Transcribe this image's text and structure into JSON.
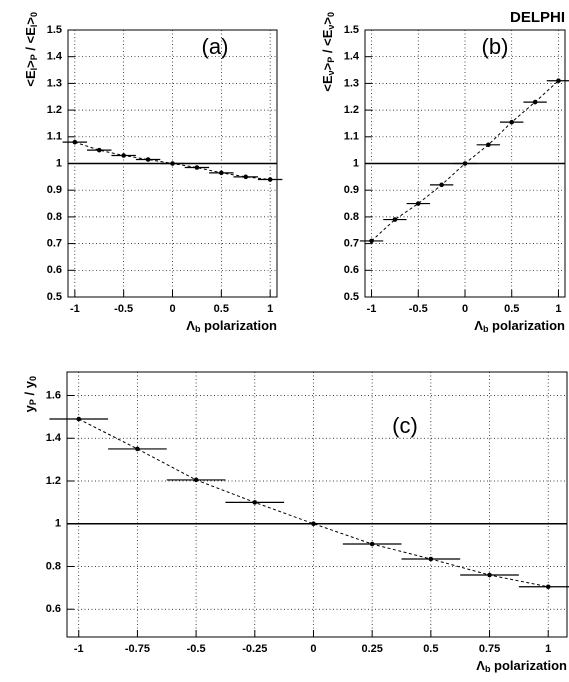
{
  "header": "DELPHI",
  "chart_data": [
    {
      "type": "line",
      "annotation": "(a)",
      "x_label": [
        "Λ",
        "b",
        " polarization"
      ],
      "y_label": [
        "<E",
        "l",
        ">",
        "P",
        " / <E",
        "l",
        ">",
        "0"
      ],
      "x": [
        -1,
        -0.75,
        -0.5,
        -0.25,
        0,
        0.25,
        0.5,
        0.75,
        1
      ],
      "xerr": 0.125,
      "values": [
        1.08,
        1.05,
        1.03,
        1.015,
        1.0,
        0.985,
        0.965,
        0.95,
        0.94
      ],
      "hline": 1,
      "xlim": [
        -1.07,
        1.07
      ],
      "ylim": [
        0.5,
        1.5
      ],
      "xticks": [
        -1,
        -0.5,
        0,
        0.5,
        1
      ],
      "yticks": [
        0.5,
        0.6,
        0.7,
        0.8,
        0.9,
        1,
        1.1,
        1.2,
        1.3,
        1.4,
        1.5
      ],
      "grid": true,
      "color": "#000000"
    },
    {
      "type": "line",
      "annotation": "(b)",
      "x_label": [
        "Λ",
        "b",
        " polarization"
      ],
      "y_label": [
        "<E",
        "ν",
        ">",
        "P",
        " / <E",
        "ν",
        ">",
        "0"
      ],
      "x": [
        -1,
        -0.75,
        -0.5,
        -0.25,
        0,
        0.25,
        0.5,
        0.75,
        1
      ],
      "xerr": 0.125,
      "values": [
        0.71,
        0.79,
        0.85,
        0.92,
        1.0,
        1.07,
        1.155,
        1.23,
        1.31
      ],
      "hline": 1,
      "xlim": [
        -1.07,
        1.07
      ],
      "ylim": [
        0.5,
        1.5
      ],
      "xticks": [
        -1,
        -0.5,
        0,
        0.5,
        1
      ],
      "yticks": [
        0.5,
        0.6,
        0.7,
        0.8,
        0.9,
        1,
        1.1,
        1.2,
        1.3,
        1.4,
        1.5
      ],
      "grid": true,
      "color": "#000000"
    },
    {
      "type": "line",
      "annotation": "(c)",
      "x_label": [
        "Λ",
        "b",
        " polarization"
      ],
      "y_label": [
        "y",
        "P",
        " / y",
        "0"
      ],
      "x": [
        -1,
        -0.75,
        -0.5,
        -0.25,
        0,
        0.25,
        0.5,
        0.75,
        1
      ],
      "xerr": 0.125,
      "values": [
        1.49,
        1.35,
        1.205,
        1.1,
        1.0,
        0.905,
        0.835,
        0.76,
        0.705
      ],
      "hline": 1,
      "xlim": [
        -1.05,
        1.08
      ],
      "ylim": [
        0.47,
        1.71
      ],
      "xticks": [
        -1,
        -0.75,
        -0.5,
        -0.25,
        0,
        0.25,
        0.5,
        0.75,
        1
      ],
      "yticks": [
        0.6,
        0.8,
        1,
        1.2,
        1.4,
        1.6
      ],
      "grid": true,
      "color": "#000000"
    }
  ]
}
